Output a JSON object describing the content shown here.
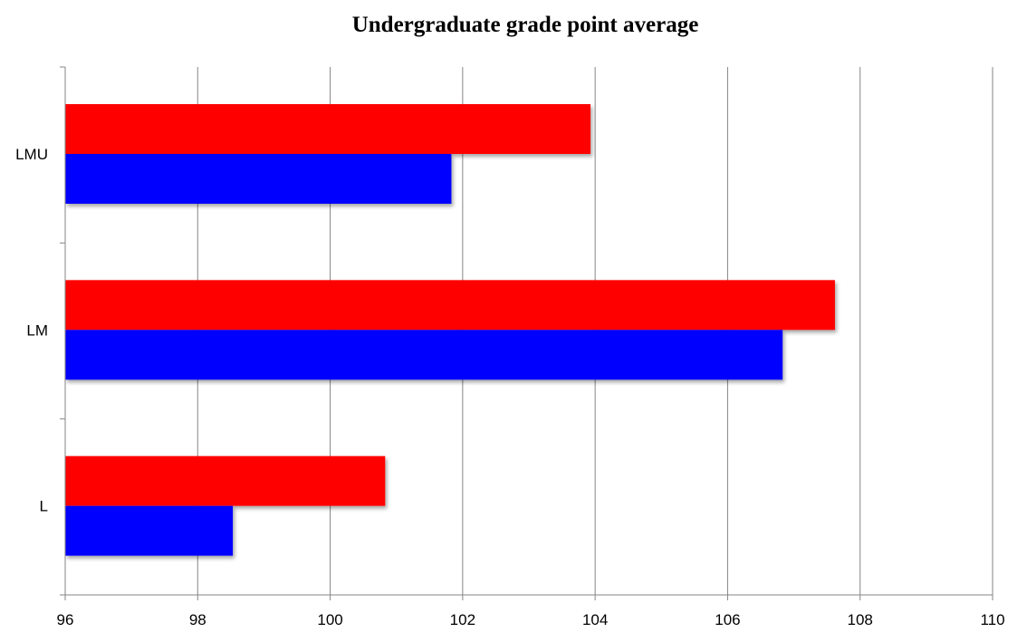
{
  "chart_data": {
    "type": "bar",
    "orientation": "horizontal",
    "title": "Undergraduate grade point average",
    "xlabel": "",
    "ylabel": "",
    "categories": [
      "LMU",
      "LM",
      "L"
    ],
    "series": [
      {
        "color": "#ff0000",
        "values": [
          103.93,
          107.62,
          100.83
        ]
      },
      {
        "color": "#0000ff",
        "values": [
          101.83,
          106.83,
          98.53
        ]
      }
    ],
    "xlim": [
      96,
      110
    ],
    "x_ticks": [
      "96",
      "98",
      "100",
      "102",
      "104",
      "106",
      "108",
      "110"
    ],
    "grid": true,
    "legend": "none"
  }
}
